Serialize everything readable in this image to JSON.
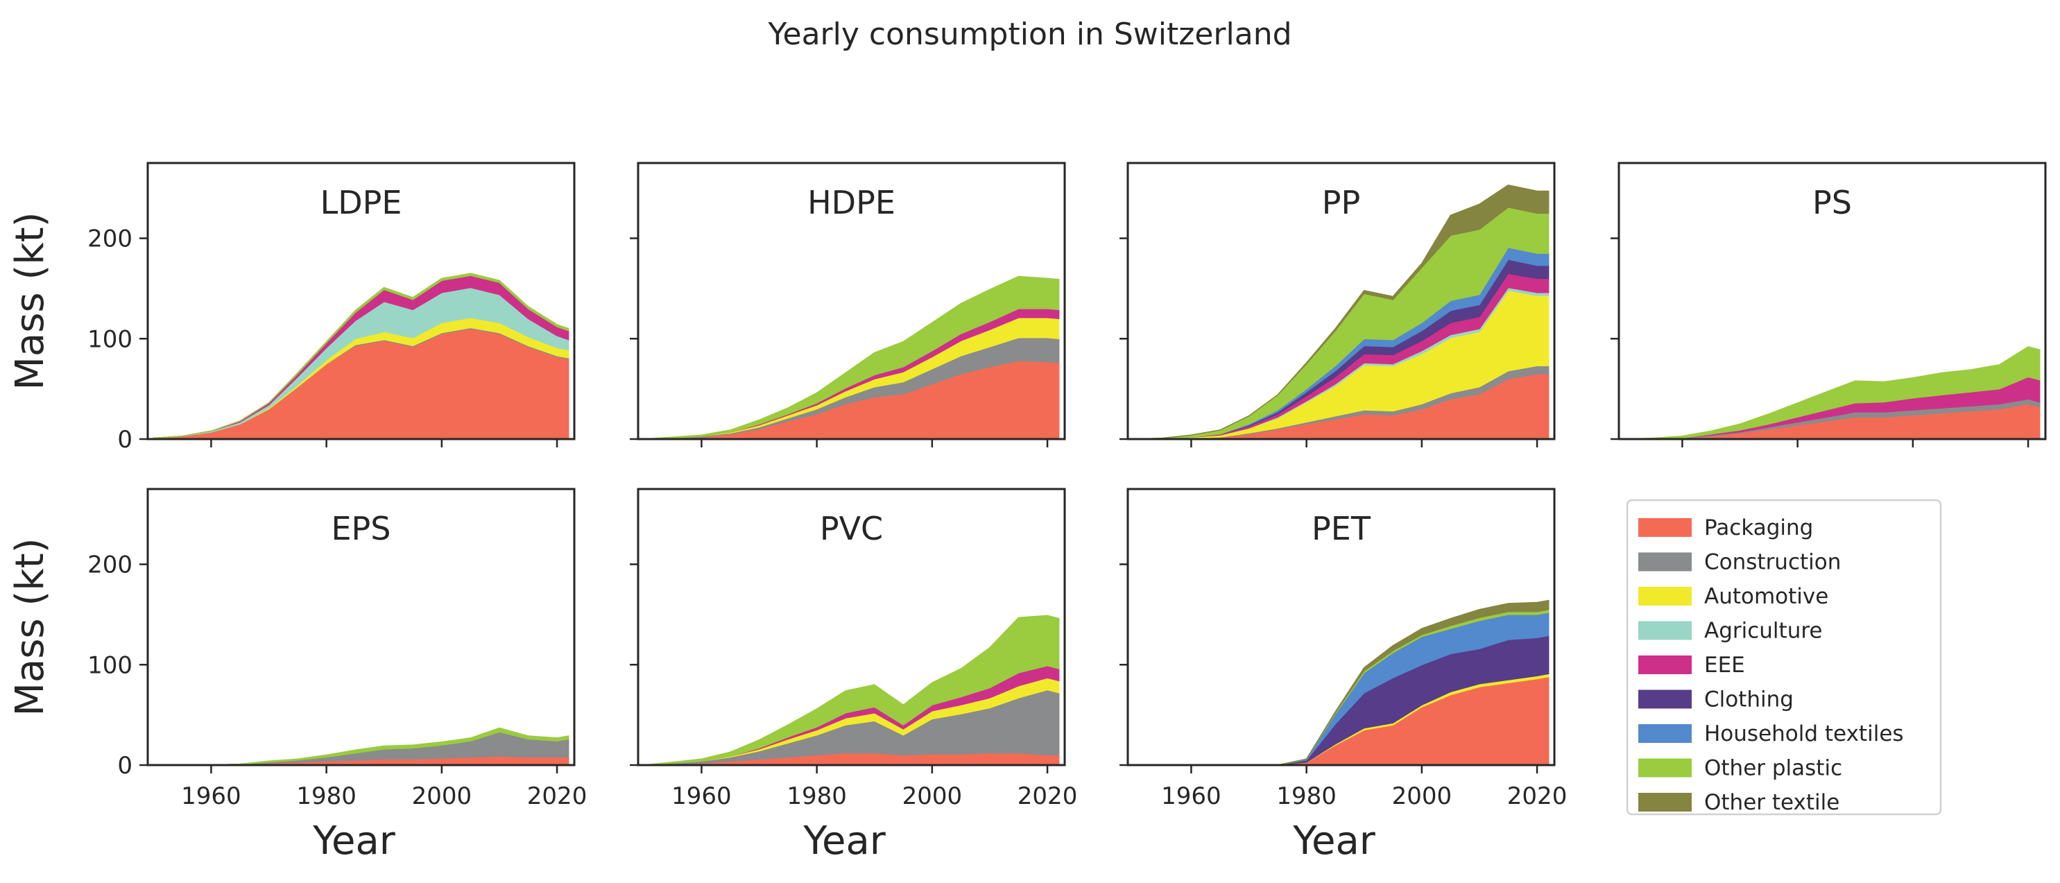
{
  "suptitle": "Yearly consumption in Switzerland",
  "chart_data": {
    "type": "area",
    "stacked": true,
    "xlabel": "Year",
    "ylabel": "Mass (kt)",
    "xlim": [
      1949,
      2023
    ],
    "ylim": [
      0,
      275
    ],
    "x_ticks": [
      1960,
      1980,
      2000,
      2020
    ],
    "y_ticks": [
      0,
      100,
      200
    ],
    "x": [
      1950,
      1955,
      1960,
      1965,
      1970,
      1975,
      1980,
      1985,
      1990,
      1995,
      2000,
      2005,
      2010,
      2015,
      2020,
      2022
    ],
    "categories": [
      {
        "name": "Packaging",
        "color": "#f46b55"
      },
      {
        "name": "Construction",
        "color": "#8a8b8c"
      },
      {
        "name": "Automotive",
        "color": "#f1ea2b"
      },
      {
        "name": "Agriculture",
        "color": "#99d6c5"
      },
      {
        "name": "EEE",
        "color": "#cd3088"
      },
      {
        "name": "Clothing",
        "color": "#573c8a"
      },
      {
        "name": "Household textiles",
        "color": "#5389cd"
      },
      {
        "name": "Other plastic",
        "color": "#9bcb3f"
      },
      {
        "name": "Other textile",
        "color": "#848540"
      }
    ],
    "panels": [
      {
        "title": "LDPE",
        "series": {
          "Packaging": [
            1,
            3,
            7,
            15,
            30,
            52,
            75,
            93,
            98,
            92,
            105,
            110,
            105,
            92,
            82,
            80
          ],
          "Construction": [
            0,
            0,
            0,
            0,
            0,
            0,
            0,
            1,
            1,
            1,
            1,
            1,
            1,
            1,
            1,
            1
          ],
          "Automotive": [
            0,
            0,
            0,
            0,
            1,
            2,
            4,
            6,
            8,
            8,
            10,
            10,
            10,
            9,
            8,
            8
          ],
          "Agriculture": [
            0,
            0,
            1,
            2,
            3,
            8,
            12,
            18,
            30,
            28,
            30,
            30,
            28,
            18,
            12,
            10
          ],
          "EEE": [
            0,
            0,
            0,
            1,
            2,
            3,
            5,
            8,
            12,
            10,
            12,
            12,
            12,
            10,
            9,
            9
          ],
          "Clothing": [
            0,
            0,
            0,
            0,
            0,
            0,
            0,
            0,
            0,
            0,
            0,
            0,
            0,
            0,
            0,
            0
          ],
          "Household textiles": [
            0,
            0,
            0,
            0,
            0,
            0,
            0,
            0,
            0,
            0,
            0,
            0,
            0,
            0,
            0,
            0
          ],
          "Other plastic": [
            0,
            0,
            0,
            0,
            0,
            1,
            1,
            2,
            2,
            2,
            2,
            2,
            2,
            2,
            2,
            2
          ],
          "Other textile": [
            0,
            0,
            0,
            0,
            0,
            0,
            0,
            0,
            0,
            0,
            0,
            0,
            0,
            0,
            0,
            0
          ]
        }
      },
      {
        "title": "HDPE",
        "series": {
          "Packaging": [
            0,
            1,
            2,
            5,
            10,
            18,
            25,
            35,
            42,
            45,
            55,
            65,
            72,
            78,
            77,
            76
          ],
          "Construction": [
            0,
            0,
            1,
            1,
            2,
            3,
            5,
            7,
            10,
            12,
            15,
            18,
            20,
            23,
            24,
            24
          ],
          "Automotive": [
            0,
            0,
            0,
            1,
            2,
            3,
            4,
            6,
            8,
            10,
            12,
            15,
            17,
            20,
            20,
            20
          ],
          "Agriculture": [
            0,
            0,
            0,
            0,
            0,
            0,
            0,
            0,
            0,
            0,
            0,
            0,
            0,
            0,
            0,
            0
          ],
          "EEE": [
            0,
            0,
            0,
            0,
            1,
            1,
            2,
            3,
            4,
            5,
            6,
            7,
            8,
            9,
            9,
            9
          ],
          "Clothing": [
            0,
            0,
            0,
            0,
            0,
            0,
            0,
            0,
            0,
            0,
            0,
            0,
            0,
            0,
            0,
            0
          ],
          "Household textiles": [
            0,
            0,
            0,
            0,
            0,
            0,
            0,
            0,
            0,
            0,
            0,
            0,
            0,
            0,
            0,
            0
          ],
          "Other plastic": [
            0,
            1,
            1,
            2,
            4,
            6,
            10,
            15,
            22,
            25,
            28,
            30,
            32,
            32,
            30,
            30
          ],
          "Other textile": [
            0,
            0,
            0,
            0,
            0,
            0,
            0,
            0,
            0,
            0,
            0,
            0,
            0,
            0,
            0,
            0
          ]
        }
      },
      {
        "title": "PP",
        "series": {
          "Packaging": [
            0,
            0,
            1,
            2,
            5,
            10,
            15,
            20,
            25,
            24,
            30,
            40,
            45,
            60,
            65,
            65
          ],
          "Construction": [
            0,
            0,
            0,
            0,
            1,
            1,
            2,
            3,
            4,
            4,
            5,
            6,
            7,
            8,
            8,
            8
          ],
          "Automotive": [
            0,
            0,
            1,
            2,
            5,
            10,
            20,
            30,
            45,
            45,
            50,
            55,
            55,
            80,
            70,
            70
          ],
          "Agriculture": [
            0,
            0,
            0,
            0,
            0,
            1,
            1,
            2,
            2,
            2,
            3,
            3,
            3,
            3,
            3,
            3
          ],
          "EEE": [
            0,
            0,
            0,
            1,
            2,
            3,
            5,
            7,
            9,
            9,
            10,
            12,
            12,
            14,
            14,
            14
          ],
          "Clothing": [
            0,
            0,
            0,
            0,
            1,
            2,
            4,
            6,
            8,
            8,
            10,
            12,
            12,
            14,
            13,
            13
          ],
          "Household textiles": [
            0,
            0,
            0,
            0,
            1,
            2,
            3,
            5,
            7,
            7,
            8,
            10,
            10,
            12,
            12,
            12
          ],
          "Other plastic": [
            0,
            1,
            2,
            4,
            8,
            15,
            25,
            35,
            45,
            40,
            55,
            65,
            65,
            40,
            40,
            40
          ],
          "Other textile": [
            0,
            0,
            0,
            0,
            0,
            0,
            1,
            2,
            3,
            3,
            4,
            20,
            25,
            22,
            22,
            22
          ]
        }
      },
      {
        "title": "PS",
        "series": {
          "Packaging": [
            0,
            0,
            1,
            3,
            6,
            10,
            14,
            18,
            22,
            22,
            24,
            26,
            28,
            30,
            35,
            32
          ],
          "Construction": [
            0,
            0,
            0,
            1,
            1,
            2,
            3,
            4,
            5,
            5,
            5,
            5,
            5,
            5,
            5,
            5
          ],
          "Automotive": [
            0,
            0,
            0,
            0,
            0,
            0,
            0,
            0,
            0,
            0,
            0,
            0,
            0,
            0,
            0,
            0
          ],
          "Agriculture": [
            0,
            0,
            0,
            0,
            0,
            0,
            0,
            0,
            0,
            0,
            0,
            0,
            0,
            0,
            0,
            0
          ],
          "EEE": [
            0,
            0,
            0,
            1,
            2,
            3,
            5,
            7,
            9,
            10,
            12,
            13,
            14,
            15,
            22,
            22
          ],
          "Clothing": [
            0,
            0,
            0,
            0,
            0,
            0,
            0,
            0,
            0,
            0,
            0,
            0,
            0,
            0,
            0,
            0
          ],
          "Household textiles": [
            0,
            0,
            0,
            0,
            0,
            0,
            0,
            0,
            0,
            0,
            0,
            0,
            0,
            0,
            0,
            0
          ],
          "Other plastic": [
            0,
            1,
            2,
            3,
            6,
            10,
            14,
            18,
            22,
            20,
            20,
            22,
            22,
            24,
            30,
            30
          ],
          "Other textile": [
            0,
            0,
            0,
            0,
            0,
            0,
            0,
            0,
            0,
            0,
            0,
            0,
            0,
            0,
            0,
            0
          ]
        }
      },
      {
        "title": "EPS",
        "series": {
          "Packaging": [
            0,
            0,
            0,
            1,
            2,
            3,
            4,
            5,
            6,
            6,
            7,
            8,
            9,
            8,
            8,
            8
          ],
          "Construction": [
            0,
            0,
            0,
            0,
            1,
            2,
            4,
            7,
            10,
            11,
            13,
            16,
            24,
            18,
            16,
            18
          ],
          "Automotive": [
            0,
            0,
            0,
            0,
            0,
            0,
            0,
            0,
            0,
            0,
            0,
            0,
            0,
            0,
            0,
            0
          ],
          "Agriculture": [
            0,
            0,
            0,
            0,
            0,
            0,
            0,
            0,
            0,
            0,
            0,
            0,
            0,
            0,
            0,
            0
          ],
          "EEE": [
            0,
            0,
            0,
            0,
            0,
            0,
            0,
            0,
            0,
            0,
            0,
            0,
            0,
            0,
            0,
            0
          ],
          "Clothing": [
            0,
            0,
            0,
            0,
            0,
            0,
            0,
            0,
            0,
            0,
            0,
            0,
            0,
            0,
            0,
            0
          ],
          "Household textiles": [
            0,
            0,
            0,
            0,
            0,
            0,
            0,
            0,
            0,
            0,
            0,
            0,
            0,
            0,
            0,
            0
          ],
          "Other plastic": [
            0,
            0,
            0,
            0,
            1,
            1,
            2,
            3,
            3,
            3,
            3,
            3,
            4,
            3,
            3,
            3
          ],
          "Other textile": [
            0,
            0,
            0,
            0,
            0,
            0,
            0,
            0,
            0,
            0,
            0,
            0,
            0,
            0,
            0,
            0
          ]
        }
      },
      {
        "title": "PVC",
        "series": {
          "Packaging": [
            0,
            1,
            2,
            4,
            6,
            8,
            10,
            12,
            12,
            10,
            11,
            11,
            12,
            12,
            10,
            10
          ],
          "Construction": [
            0,
            1,
            2,
            4,
            8,
            14,
            20,
            28,
            32,
            20,
            35,
            40,
            45,
            55,
            65,
            62
          ],
          "Automotive": [
            0,
            0,
            0,
            1,
            2,
            4,
            5,
            7,
            8,
            6,
            8,
            9,
            10,
            12,
            12,
            12
          ],
          "Agriculture": [
            0,
            0,
            0,
            0,
            0,
            0,
            0,
            0,
            0,
            0,
            0,
            0,
            0,
            0,
            0,
            0
          ],
          "EEE": [
            0,
            0,
            0,
            0,
            1,
            2,
            3,
            5,
            6,
            4,
            6,
            8,
            10,
            13,
            12,
            12
          ],
          "Clothing": [
            0,
            0,
            0,
            0,
            0,
            0,
            0,
            0,
            0,
            0,
            0,
            0,
            0,
            0,
            0,
            0
          ],
          "Household textiles": [
            0,
            0,
            0,
            0,
            0,
            0,
            0,
            0,
            0,
            0,
            0,
            0,
            0,
            0,
            0,
            0
          ],
          "Other plastic": [
            0,
            1,
            2,
            4,
            8,
            12,
            18,
            22,
            22,
            20,
            22,
            28,
            40,
            55,
            50,
            50
          ],
          "Other textile": [
            0,
            0,
            0,
            0,
            0,
            0,
            0,
            0,
            0,
            0,
            0,
            0,
            0,
            0,
            0,
            0
          ]
        }
      },
      {
        "title": "PET",
        "series": {
          "Packaging": [
            0,
            0,
            0,
            0,
            0,
            0,
            3,
            20,
            35,
            40,
            58,
            70,
            78,
            82,
            86,
            88
          ],
          "Construction": [
            0,
            0,
            0,
            0,
            0,
            0,
            0,
            0,
            0,
            0,
            0,
            0,
            0,
            0,
            0,
            0
          ],
          "Automotive": [
            0,
            0,
            0,
            0,
            0,
            0,
            0,
            1,
            2,
            2,
            2,
            3,
            3,
            3,
            3,
            3
          ],
          "Agriculture": [
            0,
            0,
            0,
            0,
            0,
            0,
            0,
            0,
            0,
            0,
            0,
            0,
            0,
            0,
            0,
            0
          ],
          "EEE": [
            0,
            0,
            0,
            0,
            0,
            0,
            0,
            0,
            0,
            0,
            0,
            0,
            0,
            0,
            0,
            0
          ],
          "Clothing": [
            0,
            0,
            0,
            0,
            0,
            0,
            2,
            20,
            35,
            45,
            40,
            38,
            35,
            40,
            38,
            38
          ],
          "Household textiles": [
            0,
            0,
            0,
            0,
            0,
            0,
            1,
            10,
            20,
            25,
            28,
            25,
            28,
            25,
            23,
            23
          ],
          "Other plastic": [
            0,
            0,
            0,
            0,
            0,
            0,
            0,
            1,
            2,
            2,
            2,
            3,
            3,
            3,
            3,
            3
          ],
          "Other textile": [
            0,
            0,
            0,
            0,
            0,
            0,
            0,
            1,
            3,
            5,
            6,
            7,
            8,
            8,
            9,
            9
          ]
        }
      }
    ]
  }
}
